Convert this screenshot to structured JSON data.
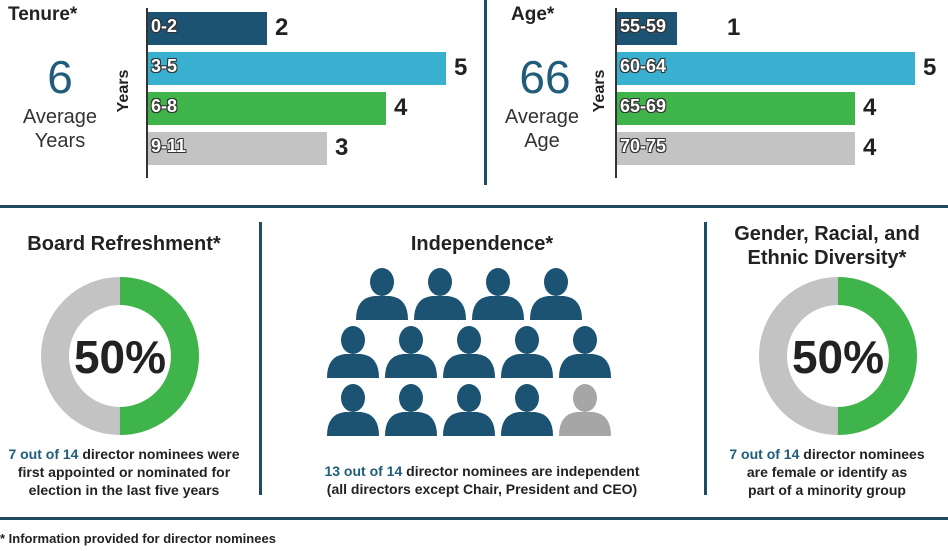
{
  "chart_data": [
    {
      "type": "bar",
      "title": "Tenure*",
      "ylabel": "Years",
      "summary_value": "6",
      "summary_label": [
        "Average",
        "Years"
      ],
      "categories": [
        "0-2",
        "3-5",
        "6-8",
        "9-11"
      ],
      "values": [
        2,
        5,
        4,
        3
      ],
      "colors": [
        "#1c5272",
        "#3ab0d0",
        "#3fb44a",
        "#c3c3c3"
      ],
      "xlim": [
        0,
        5
      ]
    },
    {
      "type": "bar",
      "title": "Age*",
      "ylabel": "Years",
      "summary_value": "66",
      "summary_label": [
        "Average",
        "Age"
      ],
      "categories": [
        "55-59",
        "60-64",
        "65-69",
        "70-75"
      ],
      "values": [
        1,
        5,
        4,
        4
      ],
      "colors": [
        "#1c5272",
        "#3ab0d0",
        "#3fb44a",
        "#c3c3c3"
      ],
      "xlim": [
        0,
        5
      ]
    },
    {
      "type": "pie",
      "title": "Board Refreshment*",
      "center_label": "50%",
      "values": [
        50,
        50
      ],
      "colors": [
        "#3fb44a",
        "#c3c3c3"
      ],
      "caption_highlight": "7 out of 14",
      "caption_lines": [
        " director nominees were",
        "first appointed or nominated for",
        "election in the last five years"
      ]
    },
    {
      "type": "icon-array",
      "title": "Independence*",
      "independent": 13,
      "total": 14,
      "colors": {
        "independent": "#1c5272",
        "not_independent": "#a6a6a6"
      },
      "caption_highlight": "13 out of 14",
      "caption_lines": [
        " director nominees are independent",
        "(all directors except Chair, President and CEO)"
      ]
    },
    {
      "type": "pie",
      "title_lines": [
        "Gender, Racial, and",
        "Ethnic Diversity*"
      ],
      "center_label": "50%",
      "values": [
        50,
        50
      ],
      "colors": [
        "#3fb44a",
        "#c3c3c3"
      ],
      "caption_highlight": "7 out of 14",
      "caption_lines": [
        " director nominees",
        "are female or identify as",
        "part of a minority group"
      ]
    }
  ],
  "footnote": "*  Information provided for director nominees"
}
